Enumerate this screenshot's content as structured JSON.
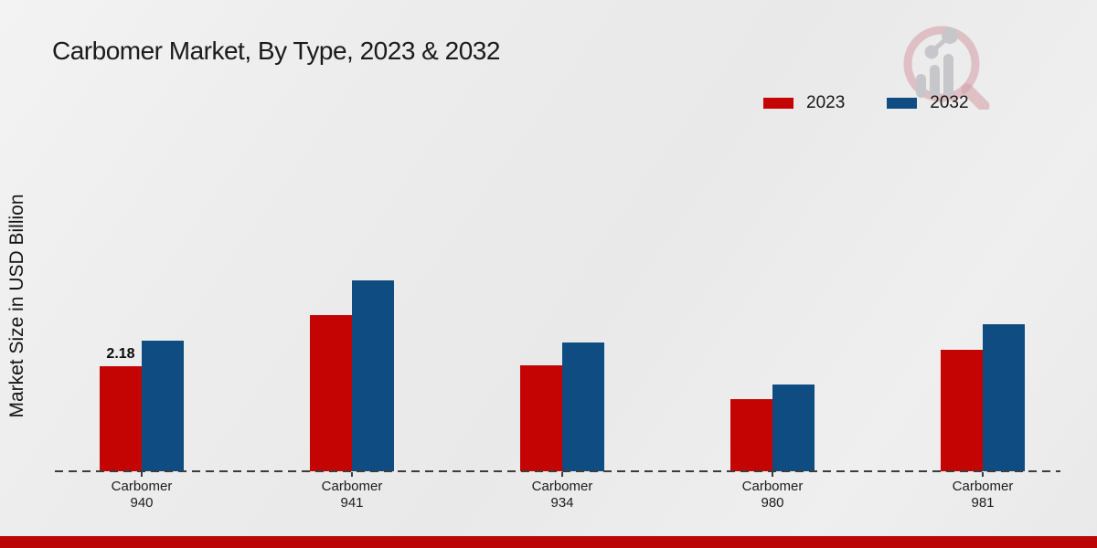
{
  "title": "Carbomer Market, By Type, 2023 & 2032",
  "y_axis_label": "Market Size in USD Billion",
  "legend": {
    "items": [
      {
        "label": "2023",
        "color": "#c40303"
      },
      {
        "label": "2032",
        "color": "#0f4c82"
      }
    ]
  },
  "icons": {
    "watermark": "bar-chart-magnifier-logo"
  },
  "colors": {
    "series_2023": "#c40303",
    "series_2032": "#0f4c82",
    "footer_strip": "#ba0606",
    "axis_line": "#3c3c3c",
    "background": "#ececec"
  },
  "footer": {
    "bar_color": "#ba0606"
  },
  "chart_data": {
    "type": "bar",
    "title": "Carbomer Market, By Type, 2023 & 2032",
    "categories": [
      "Carbomer 940",
      "Carbomer 941",
      "Carbomer 934",
      "Carbomer 980",
      "Carbomer 981"
    ],
    "category_lines": [
      [
        "Carbomer",
        "940"
      ],
      [
        "Carbomer",
        "941"
      ],
      [
        "Carbomer",
        "934"
      ],
      [
        "Carbomer",
        "980"
      ],
      [
        "Carbomer",
        "981"
      ]
    ],
    "series": [
      {
        "name": "2023",
        "color": "#c40303",
        "values": [
          2.18,
          3.24,
          2.2,
          1.5,
          2.52
        ]
      },
      {
        "name": "2032",
        "color": "#0f4c82",
        "values": [
          2.71,
          3.96,
          2.67,
          1.8,
          3.05
        ]
      }
    ],
    "annotations": [
      {
        "series_index": 0,
        "category_index": 0,
        "text": "2.18"
      }
    ],
    "xlabel": "",
    "ylabel": "Market Size in USD Billion",
    "ylim": [
      0,
      4.5
    ],
    "grid": false,
    "legend_position": "top-right",
    "baseline_style": "dashed"
  }
}
